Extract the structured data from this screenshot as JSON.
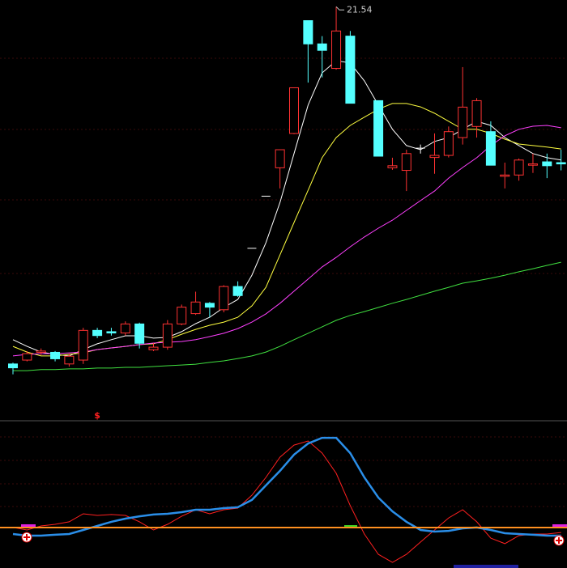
{
  "chart_data": [
    {
      "type": "candlestick",
      "categories": [
        null,
        null,
        null,
        null,
        null,
        null,
        null,
        null,
        null,
        null,
        null,
        null,
        null,
        null,
        null,
        null,
        null,
        null,
        null,
        null,
        null,
        null,
        null,
        null,
        null,
        null,
        null,
        null,
        null,
        null,
        null,
        null,
        null,
        null,
        null,
        null,
        null,
        null,
        null,
        null
      ],
      "open": [
        7.7,
        7.85,
        8.15,
        8.15,
        7.7,
        7.85,
        9.0,
        8.95,
        8.9,
        9.25,
        8.25,
        8.35,
        9.25,
        9.65,
        10.05,
        9.8,
        10.7,
        12.18,
        14.2,
        15.3,
        16.63,
        21.0,
        20.1,
        19.15,
        20.4,
        null,
        17.9,
        15.3,
        15.2,
        16.06,
        15.7,
        15.78,
        16.47,
        16.9,
        16.7,
        14.97,
        15.02,
        15.4,
        15.53,
        15.5
      ],
      "high": [
        7.75,
        8.2,
        8.3,
        8.2,
        8.1,
        9.1,
        9.1,
        9.1,
        9.35,
        9.3,
        8.5,
        9.4,
        10.0,
        10.5,
        10.1,
        10.75,
        10.9,
        12.18,
        14.2,
        16.0,
        18.4,
        21.0,
        20.4,
        21.54,
        20.6,
        null,
        17.9,
        15.69,
        16.0,
        16.2,
        16.63,
        16.9,
        19.2,
        18.0,
        17.1,
        15.5,
        15.66,
        15.85,
        15.85,
        16.0
      ],
      "low": [
        7.3,
        7.8,
        8.05,
        7.8,
        7.6,
        7.7,
        8.7,
        8.8,
        8.8,
        8.3,
        8.2,
        8.25,
        9.2,
        9.6,
        9.5,
        9.7,
        10.3,
        12.18,
        14.2,
        14.5,
        16.6,
        18.6,
        18.8,
        19.1,
        17.8,
        null,
        15.75,
        15.22,
        14.4,
        15.85,
        15.07,
        15.7,
        16.2,
        16.47,
        15.4,
        14.5,
        14.8,
        15.1,
        14.9,
        15.2
      ],
      "close": [
        7.55,
        8.1,
        8.2,
        7.9,
        8.0,
        9.0,
        8.8,
        8.9,
        9.25,
        8.5,
        8.35,
        9.25,
        9.9,
        10.1,
        9.9,
        10.7,
        10.35,
        12.18,
        14.2,
        16.0,
        18.4,
        20.1,
        19.85,
        20.6,
        17.8,
        null,
        15.75,
        15.38,
        15.85,
        16.06,
        15.78,
        16.7,
        17.65,
        17.9,
        15.4,
        15.02,
        15.6,
        15.45,
        15.38,
        15.45
      ],
      "up_color": "#ff3232",
      "down_color": "#54ffff",
      "doji_color": "#ffffff",
      "ylim": [
        5.5,
        21.8
      ],
      "annotation": "$",
      "annotation_color": "#ff2020",
      "annotation_index": 6,
      "series": [
        {
          "color": "#ffffff",
          "values": [
            8.64,
            8.38,
            8.16,
            8.07,
            8.01,
            8.26,
            8.48,
            8.64,
            8.79,
            8.79,
            8.7,
            8.73,
            8.95,
            9.26,
            9.51,
            9.89,
            10.2,
            11.14,
            12.4,
            13.96,
            15.85,
            17.73,
            18.98,
            19.45,
            19.36,
            18.67,
            17.73,
            16.79,
            16.16,
            16.0,
            16.32,
            16.47,
            16.79,
            17.1,
            16.94,
            16.47,
            16.16,
            15.85,
            15.69,
            15.6
          ]
        },
        {
          "color": "#ffff40",
          "values": [
            8.38,
            8.16,
            8.01,
            8.01,
            8.07,
            8.13,
            8.26,
            8.32,
            8.38,
            8.45,
            8.48,
            8.64,
            8.85,
            9.04,
            9.2,
            9.32,
            9.51,
            9.95,
            10.67,
            11.93,
            13.18,
            14.43,
            15.69,
            16.47,
            16.94,
            17.26,
            17.57,
            17.79,
            17.79,
            17.66,
            17.41,
            17.1,
            16.79,
            16.79,
            16.63,
            16.41,
            16.22,
            16.16,
            16.1,
            16.03
          ]
        },
        {
          "color": "#ff40ff",
          "values": [
            8.01,
            8.07,
            8.1,
            8.1,
            8.13,
            8.16,
            8.26,
            8.32,
            8.38,
            8.45,
            8.51,
            8.54,
            8.57,
            8.64,
            8.76,
            8.89,
            9.07,
            9.32,
            9.64,
            10.05,
            10.52,
            10.99,
            11.46,
            11.83,
            12.24,
            12.62,
            12.96,
            13.27,
            13.65,
            14.03,
            14.4,
            14.9,
            15.31,
            15.69,
            16.16,
            16.54,
            16.79,
            16.91,
            16.94,
            16.85
          ]
        },
        {
          "color": "#40e040",
          "values": [
            7.44,
            7.44,
            7.48,
            7.48,
            7.51,
            7.51,
            7.54,
            7.54,
            7.57,
            7.57,
            7.6,
            7.63,
            7.66,
            7.69,
            7.76,
            7.82,
            7.91,
            8.01,
            8.16,
            8.38,
            8.64,
            8.89,
            9.14,
            9.39,
            9.58,
            9.73,
            9.89,
            10.05,
            10.2,
            10.36,
            10.52,
            10.67,
            10.83,
            10.92,
            11.02,
            11.14,
            11.27,
            11.39,
            11.52,
            11.64
          ]
        }
      ]
    },
    {
      "type": "line",
      "ylim": [
        0,
        100
      ],
      "reference_line": 26.7,
      "reference_color": "#ff9020",
      "series": [
        {
          "color": "#ff2020",
          "width": 1,
          "values": [
            26.7,
            25.0,
            27.8,
            28.9,
            30.6,
            36.1,
            35.0,
            35.6,
            35.0,
            30.6,
            25.0,
            28.9,
            34.4,
            38.9,
            36.1,
            38.9,
            40.0,
            48.9,
            61.1,
            75.0,
            83.3,
            86.1,
            77.8,
            63.9,
            41.7,
            22.2,
            8.3,
            2.8,
            8.3,
            16.7,
            25.0,
            33.3,
            38.9,
            30.6,
            19.4,
            15.6,
            21.1,
            22.2,
            22.2,
            23.3
          ]
        },
        {
          "color": "#2a8ee8",
          "width": 2.5,
          "values": [
            22.2,
            21.1,
            21.1,
            21.7,
            22.2,
            25.0,
            27.8,
            30.6,
            32.8,
            34.4,
            35.6,
            36.1,
            37.2,
            38.9,
            38.9,
            40.0,
            40.6,
            45.6,
            55.6,
            65.6,
            76.7,
            84.4,
            88.3,
            88.3,
            77.8,
            61.1,
            47.2,
            37.8,
            30.6,
            25.0,
            23.9,
            24.4,
            26.1,
            26.7,
            25.0,
            22.8,
            22.2,
            21.7,
            21.1,
            21.1
          ]
        }
      ]
    }
  ]
}
